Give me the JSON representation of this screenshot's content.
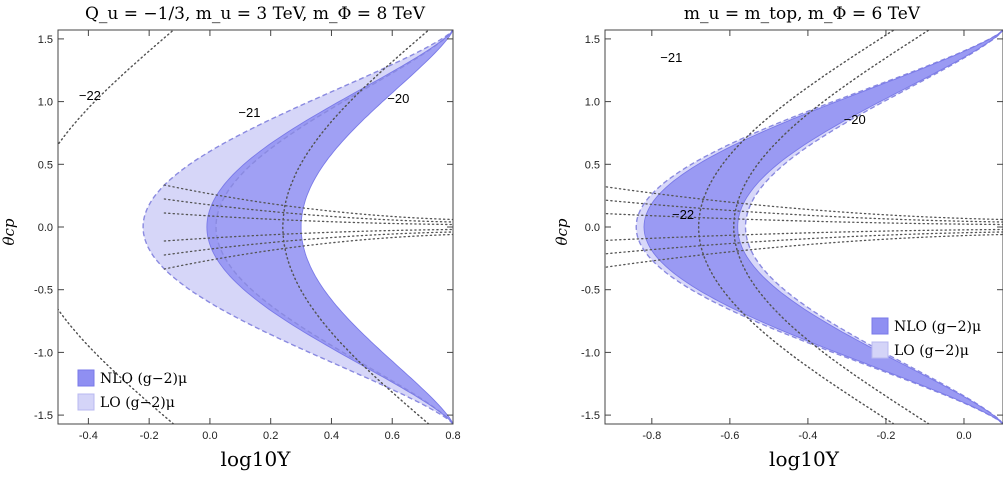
{
  "chart_data": [
    {
      "type": "area",
      "title": "Q_u = −1/3,  m_u = 3 TeV,  m_Φ = 8 TeV",
      "xlabel": "log10Y",
      "ylabel": "θcp",
      "xlim": [
        -0.5,
        0.8
      ],
      "ylim": [
        -1.571,
        1.571
      ],
      "x_ticks": [
        "-0.4",
        "-0.2",
        "0.0",
        "0.2",
        "0.4",
        "0.6",
        "0.8"
      ],
      "y_ticks": [
        "-1.5",
        "-1.0",
        "-0.5",
        "0.0",
        "0.5",
        "1.0",
        "1.5"
      ],
      "legend_position": "bottom-left",
      "series": [
        {
          "name": "NLO (g−2)μ",
          "color": "#8f8ff2",
          "x_at_theta0": [
            -0.01,
            0.3
          ]
        },
        {
          "name": "LO (g−2)μ",
          "color": "#d4d4f8",
          "x_at_theta0": [
            -0.22,
            0.02
          ]
        }
      ],
      "contours": [
        {
          "label": "−22",
          "x_at_theta0": -0.6
        },
        {
          "label": "−21",
          "x_at_theta0": 0.24
        },
        {
          "label": "−20",
          "x_at_theta0": 1.1
        }
      ]
    },
    {
      "type": "area",
      "title": "m_u = m_top,  m_Φ = 6 TeV",
      "xlabel": "log10Y",
      "ylabel": "θcp",
      "xlim": [
        -0.92,
        0.1
      ],
      "ylim": [
        -1.571,
        1.571
      ],
      "x_ticks": [
        "-0.8",
        "-0.6",
        "-0.4",
        "-0.2",
        "0.0"
      ],
      "y_ticks": [
        "-1.5",
        "-1.0",
        "-0.5",
        "0.0",
        "0.5",
        "1.0",
        "1.5"
      ],
      "legend_position": "bottom-right",
      "series": [
        {
          "name": "NLO (g−2)μ",
          "color": "#8f8ff2",
          "x_at_theta0": [
            -0.82,
            -0.58
          ]
        },
        {
          "name": "LO (g−2)μ",
          "color": "#d4d4f8",
          "x_at_theta0": [
            -0.84,
            -0.56
          ]
        }
      ],
      "contours": [
        {
          "label": "−22",
          "x_at_theta0": -0.68
        },
        {
          "label": "−21",
          "x_at_theta0": -0.59
        },
        {
          "label": "−20",
          "x_at_theta0": 0.22
        }
      ]
    }
  ]
}
